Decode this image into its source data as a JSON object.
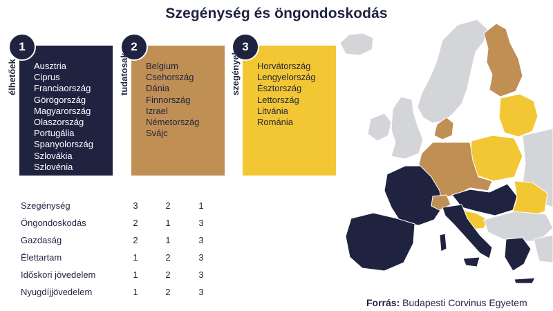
{
  "title": "Szegénység és öngondoskodás",
  "groups": [
    {
      "number": "1",
      "label": "élhetőek",
      "color": "#1f2340",
      "countries": [
        "Ausztria",
        "Ciprus",
        "Franciaország",
        "Görögország",
        "Magyarország",
        "Olaszország",
        "Portugália",
        "Spanyolország",
        "Szlovákia",
        "Szlovénia"
      ]
    },
    {
      "number": "2",
      "label": "tudatosak",
      "color": "#bf8f54",
      "countries": [
        "Belgium",
        "Csehország",
        "Dánia",
        "Finnország",
        "Izrael",
        "Németország",
        "Svájc"
      ]
    },
    {
      "number": "3",
      "label": "szegények",
      "color": "#f3c733",
      "countries": [
        "Horvátország",
        "Lengyelország",
        "Észtország",
        "Lettország",
        "Litvánia",
        "Románia"
      ]
    }
  ],
  "metrics": [
    {
      "label": "Szegénység",
      "values": [
        "3",
        "2",
        "1"
      ]
    },
    {
      "label": "Öngondoskodás",
      "values": [
        "2",
        "1",
        "3"
      ]
    },
    {
      "label": "Gazdaság",
      "values": [
        "2",
        "1",
        "3"
      ]
    },
    {
      "label": "Élettartam",
      "values": [
        "1",
        "2",
        "3"
      ]
    },
    {
      "label": "Időskori jövedelem",
      "values": [
        "1",
        "2",
        "3"
      ]
    },
    {
      "label": "Nyugdíjjövedelem",
      "values": [
        "1",
        "2",
        "3"
      ]
    }
  ],
  "source": {
    "prefix": "Forrás:",
    "text": "Budapesti Corvinus Egyetem"
  },
  "map_colors": {
    "group1": "#1f2340",
    "group2": "#bf8f54",
    "group3": "#f3c733",
    "other": "#d4d5d8",
    "sea": "#ffffff"
  }
}
